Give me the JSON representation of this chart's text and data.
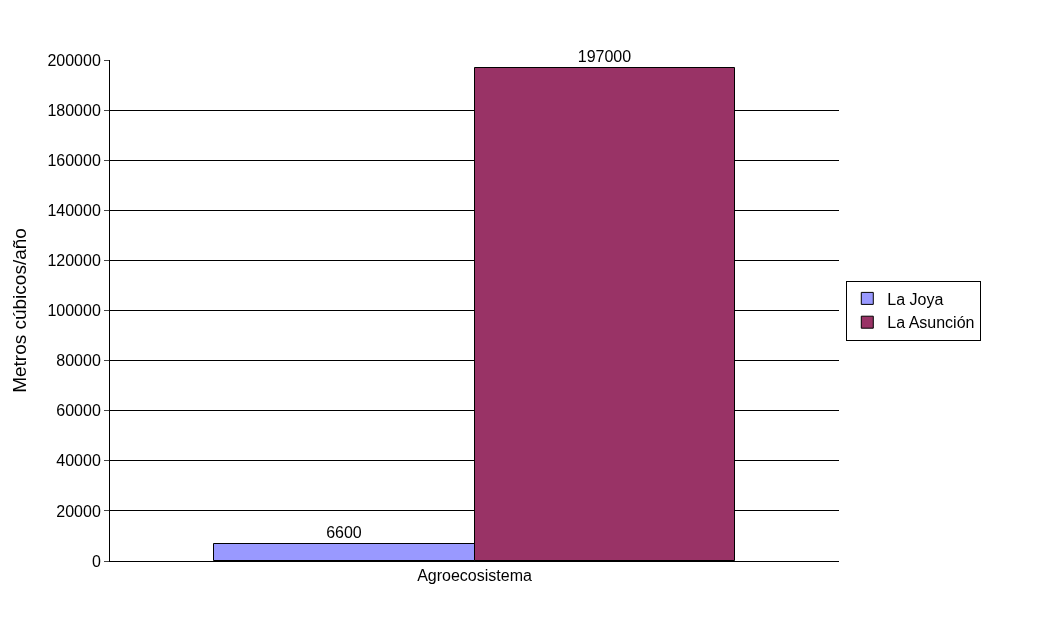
{
  "chart_data": {
    "type": "bar",
    "ylabel": "Metros cúbicos/año",
    "categories": [
      "Agroecosistema"
    ],
    "series": [
      {
        "name": "La Joya",
        "color": "#9999ff",
        "values": [
          6600
        ]
      },
      {
        "name": "La Asunción",
        "color": "#993366",
        "values": [
          197000
        ]
      }
    ],
    "ylim": [
      0,
      200000
    ],
    "yticks": [
      0,
      20000,
      40000,
      60000,
      80000,
      100000,
      120000,
      140000,
      160000,
      180000,
      200000
    ],
    "grid": "y",
    "legend": "right",
    "data_labels": true
  }
}
